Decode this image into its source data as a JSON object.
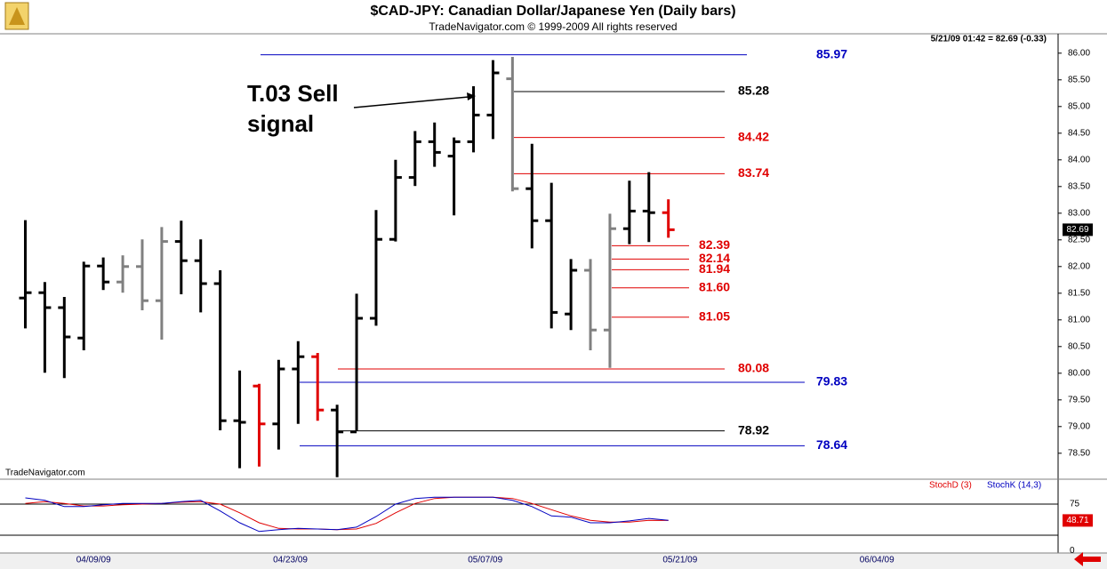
{
  "header": {
    "title": "$CAD-JPY:  Canadian Dollar/Japanese Yen  (Daily bars)",
    "subtitle": "TradeNavigator.com © 1999-2009 All rights reserved",
    "status": "5/21/09 01:42 = 82.69 (-0.33)",
    "footer": "TradeNavigator.com"
  },
  "chart_data": [
    {
      "type": "ohlc",
      "annotation": [
        "T.03 Sell",
        "signal"
      ],
      "open": [
        81.41,
        81.51,
        81.23,
        80.66,
        82.01,
        81.71,
        82.0,
        81.36,
        82.47,
        82.11,
        81.68,
        79.11,
        79.76,
        79.05,
        80.08,
        80.31,
        79.31,
        78.9,
        81.03,
        82.51,
        83.67,
        84.34,
        84.07,
        84.34,
        84.84,
        85.52,
        83.46,
        82.86,
        81.11,
        81.93,
        80.81,
        82.71,
        83.04,
        83.01
      ],
      "high": [
        82.87,
        81.71,
        81.43,
        82.09,
        82.17,
        82.21,
        82.51,
        82.74,
        82.86,
        82.51,
        81.93,
        80.05,
        79.8,
        80.25,
        80.6,
        80.38,
        79.41,
        81.49,
        83.06,
        84.0,
        84.54,
        84.7,
        84.42,
        85.38,
        85.87,
        85.93,
        84.3,
        83.57,
        82.14,
        82.14,
        82.99,
        83.61,
        83.77,
        83.26
      ],
      "low": [
        80.84,
        80.01,
        79.91,
        80.43,
        81.56,
        81.51,
        81.18,
        80.63,
        81.48,
        81.14,
        78.93,
        78.22,
        78.25,
        78.57,
        79.05,
        79.11,
        78.05,
        78.92,
        80.89,
        82.47,
        83.51,
        83.87,
        82.96,
        84.14,
        84.39,
        83.41,
        82.34,
        80.84,
        80.81,
        80.43,
        80.1,
        82.42,
        82.46,
        82.54
      ],
      "close": [
        81.51,
        81.23,
        80.68,
        82.01,
        81.71,
        82.0,
        81.36,
        82.47,
        82.11,
        81.68,
        79.11,
        79.08,
        79.05,
        80.08,
        80.31,
        79.31,
        78.9,
        81.03,
        82.51,
        83.67,
        84.34,
        84.14,
        84.34,
        84.84,
        85.63,
        83.46,
        82.86,
        81.14,
        81.93,
        80.81,
        82.71,
        83.04,
        83.01,
        82.69
      ],
      "colors": [
        "#000000",
        "#000000",
        "#000000",
        "#000000",
        "#000000",
        "#808080",
        "#808080",
        "#808080",
        "#000000",
        "#000000",
        "#000000",
        "#000000",
        "#e00000",
        "#000000",
        "#000000",
        "#e00000",
        "#000000",
        "#000000",
        "#000000",
        "#000000",
        "#000000",
        "#000000",
        "#000000",
        "#000000",
        "#000000",
        "#808080",
        "#000000",
        "#000000",
        "#000000",
        "#808080",
        "#808080",
        "#000000",
        "#000000",
        "#e00000"
      ],
      "levels": [
        {
          "value": 85.97,
          "color": "#0000c0"
        },
        {
          "value": 85.28,
          "color": "#000000"
        },
        {
          "value": 84.42,
          "color": "#e00000"
        },
        {
          "value": 83.74,
          "color": "#e00000"
        },
        {
          "value": 82.39,
          "color": "#e00000"
        },
        {
          "value": 82.14,
          "color": "#e00000"
        },
        {
          "value": 81.94,
          "color": "#e00000"
        },
        {
          "value": 81.6,
          "label": "81.60",
          "color": "#e00000"
        },
        {
          "value": 81.05,
          "color": "#e00000"
        },
        {
          "value": 80.08,
          "color": "#e00000"
        },
        {
          "value": 79.83,
          "color": "#0000c0"
        },
        {
          "value": 78.92,
          "color": "#000000"
        },
        {
          "value": 78.64,
          "color": "#0000c0"
        }
      ],
      "xlim": [
        -1.3,
        53
      ],
      "xticks": [
        {
          "value": 3.5,
          "label": "04/09/09"
        },
        {
          "value": 13.6,
          "label": "04/23/09"
        },
        {
          "value": 23.6,
          "label": "05/07/09"
        },
        {
          "value": 33.6,
          "label": "05/21/09"
        },
        {
          "value": 43.7,
          "label": "06/04/09"
        }
      ],
      "ylim": [
        78.03,
        86.33
      ],
      "yticks": [
        {
          "value": 86,
          "label": "86.00"
        },
        {
          "value": 85.5,
          "label": "85.50"
        },
        {
          "value": 85,
          "label": "85.00"
        },
        {
          "value": 84.5,
          "label": "84.50"
        },
        {
          "value": 84,
          "label": "84.00"
        },
        {
          "value": 83.5,
          "label": "83.50"
        },
        {
          "value": 83,
          "label": "83.00"
        },
        {
          "value": 82.5,
          "label": "82.50"
        },
        {
          "value": 82,
          "label": "82.00"
        },
        {
          "value": 81.5,
          "label": "81.50"
        },
        {
          "value": 81,
          "label": "81.00"
        },
        {
          "value": 80.5,
          "label": "80.50"
        },
        {
          "value": 80,
          "label": "80.00"
        },
        {
          "value": 79.5,
          "label": "79.50"
        },
        {
          "value": 79,
          "label": "79.00"
        },
        {
          "value": 78.5,
          "label": "78.50"
        }
      ]
    },
    {
      "type": "line",
      "series": [
        {
          "name": "StochD (3)",
          "color": "#e00000",
          "values": [
            76,
            79,
            76,
            72,
            72,
            74,
            75,
            76,
            78,
            79,
            75,
            61,
            45,
            36,
            35,
            35,
            34,
            35,
            44,
            61,
            76,
            84,
            86,
            86,
            86,
            84,
            76,
            66,
            56,
            49,
            46,
            46,
            49,
            48.71
          ]
        },
        {
          "name": "StochK (14,3)",
          "color": "#0000c0",
          "values": [
            85,
            81,
            71,
            71,
            74,
            76,
            76,
            76,
            79,
            81,
            64,
            45,
            31,
            34,
            36,
            35,
            34,
            38,
            55,
            75,
            84,
            86,
            86,
            86,
            86,
            81,
            71,
            56,
            54,
            45,
            45,
            48,
            52,
            49
          ]
        }
      ],
      "levels": [
        75,
        25
      ],
      "ylim": [
        -3.6,
        113.6
      ],
      "yticks": [
        75,
        0
      ]
    }
  ]
}
